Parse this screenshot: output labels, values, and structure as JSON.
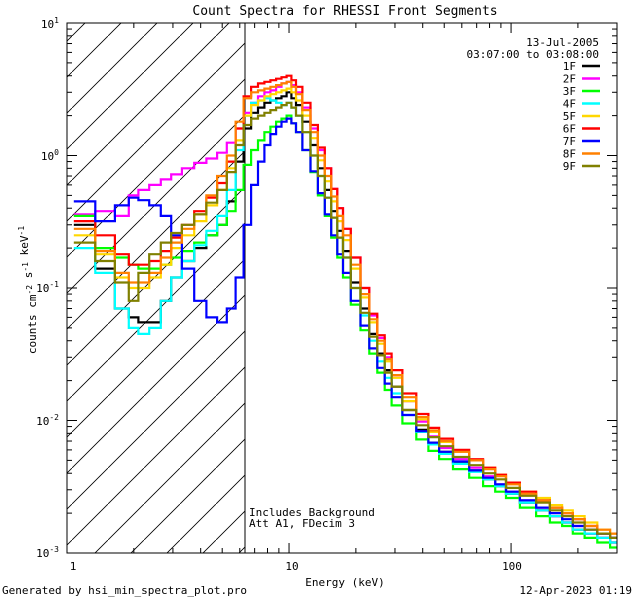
{
  "footer": {
    "generated_by": "Generated by hsi_min_spectra_plot.pro",
    "generated_on": "12-Apr-2023 01:19"
  },
  "chart_data": {
    "type": "line",
    "title": "Count Spectra for RHESSI Front Segments",
    "xlabel": "Energy (keV)",
    "ylabel": "counts cm^-2 s^-1 keV^-1",
    "xscale": "log",
    "yscale": "log",
    "xlim": [
      1,
      300
    ],
    "ylim": [
      0.001,
      10
    ],
    "x_tick_labels": [
      {
        "value": 1,
        "label": "1"
      },
      {
        "value": 10,
        "label": "10"
      },
      {
        "value": 100,
        "label": "100"
      }
    ],
    "y_tick_labels": [
      {
        "value": 0.001,
        "base": "10",
        "exp": "-3"
      },
      {
        "value": 0.01,
        "base": "10",
        "exp": "-2"
      },
      {
        "value": 0.1,
        "base": "10",
        "exp": "-1"
      },
      {
        "value": 1,
        "base": "10",
        "exp": "0"
      },
      {
        "value": 10,
        "base": "10",
        "exp": "1"
      }
    ],
    "date": "13-Jul-2005",
    "time_range": "03:07:00 to 03:08:00",
    "annotations": [
      "Includes Background",
      "Att A1, FDecim 3"
    ],
    "shaded_region": {
      "x0": 1,
      "x1": 6,
      "pattern": "diagonal-hatch"
    },
    "vertical_line": 6,
    "legend_position": "top-right",
    "x": [
      1.2,
      1.5,
      1.8,
      2.0,
      2.2,
      2.5,
      2.8,
      3.1,
      3.5,
      4.0,
      4.5,
      5.0,
      5.5,
      6.0,
      6.5,
      7.0,
      7.5,
      8.0,
      8.5,
      9.0,
      9.5,
      10.0,
      10.5,
      11.0,
      12.0,
      13.0,
      14.0,
      15.0,
      16.0,
      17.0,
      18.0,
      20.0,
      22.0,
      24.0,
      26.0,
      28.0,
      30.0,
      35.0,
      40.0,
      45.0,
      50.0,
      60.0,
      70.0,
      80.0,
      90.0,
      100.0,
      120.0,
      140.0,
      160.0,
      180.0,
      200.0,
      230.0,
      260.0,
      300.0
    ],
    "series": [
      {
        "name": "1F",
        "color": "#000000",
        "values": [
          0.3,
          0.14,
          0.07,
          0.06,
          0.055,
          0.055,
          0.08,
          0.12,
          0.16,
          0.2,
          0.25,
          0.3,
          0.45,
          0.9,
          1.6,
          2.1,
          2.3,
          2.5,
          2.6,
          2.7,
          2.8,
          3.0,
          2.7,
          2.4,
          1.8,
          1.2,
          0.8,
          0.55,
          0.38,
          0.27,
          0.19,
          0.11,
          0.07,
          0.045,
          0.032,
          0.024,
          0.018,
          0.012,
          0.0085,
          0.0068,
          0.0058,
          0.0048,
          0.0042,
          0.0036,
          0.0032,
          0.0028,
          0.0024,
          0.0021,
          0.0019,
          0.0017,
          0.0015,
          0.0014,
          0.0013,
          0.0012
        ]
      },
      {
        "name": "2F",
        "color": "#ff00ff",
        "values": [
          0.36,
          0.38,
          0.35,
          0.5,
          0.55,
          0.6,
          0.66,
          0.72,
          0.8,
          0.88,
          0.95,
          1.05,
          1.25,
          1.6,
          2.1,
          2.5,
          2.8,
          3.0,
          3.1,
          3.3,
          3.5,
          3.6,
          3.4,
          3.0,
          2.3,
          1.6,
          1.1,
          0.8,
          0.56,
          0.4,
          0.28,
          0.17,
          0.1,
          0.062,
          0.042,
          0.03,
          0.022,
          0.014,
          0.0098,
          0.0076,
          0.0062,
          0.0051,
          0.0044,
          0.0038,
          0.0033,
          0.0029,
          0.0025,
          0.0022,
          0.0019,
          0.0017,
          0.0016,
          0.0014,
          0.0013,
          0.0012
        ]
      },
      {
        "name": "3F",
        "color": "#00ff00",
        "values": [
          0.35,
          0.2,
          0.17,
          0.15,
          0.14,
          0.14,
          0.15,
          0.17,
          0.19,
          0.22,
          0.25,
          0.3,
          0.38,
          0.55,
          0.85,
          1.1,
          1.3,
          1.5,
          1.65,
          1.8,
          1.9,
          2.0,
          1.75,
          1.5,
          1.1,
          0.75,
          0.5,
          0.35,
          0.24,
          0.17,
          0.12,
          0.075,
          0.048,
          0.032,
          0.023,
          0.017,
          0.013,
          0.0095,
          0.0072,
          0.0059,
          0.0051,
          0.0043,
          0.0037,
          0.0032,
          0.0029,
          0.0026,
          0.0022,
          0.0019,
          0.0017,
          0.0016,
          0.0014,
          0.0013,
          0.0012,
          0.0011
        ]
      },
      {
        "name": "4F",
        "color": "#00ffff",
        "values": [
          0.2,
          0.13,
          0.07,
          0.05,
          0.045,
          0.05,
          0.08,
          0.12,
          0.16,
          0.21,
          0.27,
          0.35,
          0.55,
          1.1,
          2.0,
          2.5,
          2.6,
          2.7,
          2.6,
          2.5,
          2.4,
          2.5,
          2.3,
          2.0,
          1.5,
          1.0,
          0.7,
          0.48,
          0.34,
          0.24,
          0.17,
          0.1,
          0.062,
          0.04,
          0.028,
          0.021,
          0.016,
          0.011,
          0.0082,
          0.0066,
          0.0056,
          0.0047,
          0.0041,
          0.0036,
          0.0032,
          0.0028,
          0.0024,
          0.0021,
          0.0019,
          0.0017,
          0.0015,
          0.0014,
          0.0013,
          0.0012
        ]
      },
      {
        "name": "5F",
        "color": "#ffd700",
        "values": [
          0.25,
          0.18,
          0.12,
          0.1,
          0.1,
          0.12,
          0.15,
          0.2,
          0.25,
          0.32,
          0.42,
          0.55,
          0.8,
          1.3,
          2.0,
          2.4,
          2.6,
          2.8,
          2.9,
          3.0,
          3.1,
          3.2,
          3.0,
          2.6,
          2.0,
          1.35,
          0.92,
          0.64,
          0.45,
          0.32,
          0.23,
          0.14,
          0.085,
          0.055,
          0.038,
          0.028,
          0.021,
          0.014,
          0.0102,
          0.0082,
          0.0069,
          0.0058,
          0.005,
          0.0044,
          0.0039,
          0.0034,
          0.0029,
          0.0026,
          0.0023,
          0.0021,
          0.0019,
          0.0017,
          0.0015,
          0.0014
        ]
      },
      {
        "name": "6F",
        "color": "#ff0000",
        "values": [
          0.32,
          0.25,
          0.18,
          0.15,
          0.15,
          0.16,
          0.19,
          0.24,
          0.3,
          0.38,
          0.48,
          0.62,
          0.9,
          1.6,
          2.8,
          3.3,
          3.5,
          3.6,
          3.7,
          3.8,
          3.9,
          4.0,
          3.7,
          3.3,
          2.5,
          1.7,
          1.15,
          0.8,
          0.56,
          0.4,
          0.28,
          0.17,
          0.1,
          0.064,
          0.044,
          0.032,
          0.024,
          0.016,
          0.0112,
          0.0088,
          0.0073,
          0.006,
          0.0051,
          0.0044,
          0.0039,
          0.0034,
          0.0029,
          0.0025,
          0.0022,
          0.002,
          0.0018,
          0.0016,
          0.0014,
          0.0013
        ]
      },
      {
        "name": "7F",
        "color": "#0000ff",
        "values": [
          0.45,
          0.32,
          0.42,
          0.48,
          0.46,
          0.42,
          0.35,
          0.25,
          0.14,
          0.08,
          0.06,
          0.055,
          0.07,
          0.12,
          0.3,
          0.6,
          0.9,
          1.2,
          1.45,
          1.65,
          1.8,
          1.9,
          1.75,
          1.5,
          1.1,
          0.76,
          0.52,
          0.36,
          0.25,
          0.18,
          0.13,
          0.08,
          0.052,
          0.035,
          0.025,
          0.019,
          0.015,
          0.011,
          0.0083,
          0.0068,
          0.0058,
          0.0049,
          0.0042,
          0.0037,
          0.0033,
          0.0029,
          0.0025,
          0.0022,
          0.002,
          0.0018,
          0.0016,
          0.0015,
          0.0014,
          0.0013
        ]
      },
      {
        "name": "8F",
        "color": "#ff8000",
        "values": [
          0.28,
          0.19,
          0.13,
          0.11,
          0.11,
          0.13,
          0.17,
          0.22,
          0.28,
          0.36,
          0.5,
          0.7,
          1.0,
          1.8,
          2.7,
          3.0,
          3.1,
          3.2,
          3.3,
          3.4,
          3.5,
          3.6,
          3.3,
          2.9,
          2.2,
          1.5,
          1.0,
          0.7,
          0.49,
          0.35,
          0.25,
          0.15,
          0.09,
          0.058,
          0.04,
          0.029,
          0.022,
          0.015,
          0.0106,
          0.0084,
          0.007,
          0.0058,
          0.005,
          0.0043,
          0.0038,
          0.0033,
          0.0028,
          0.0025,
          0.0022,
          0.002,
          0.0018,
          0.0016,
          0.0015,
          0.0014
        ]
      },
      {
        "name": "9F",
        "color": "#808000",
        "values": [
          0.22,
          0.16,
          0.11,
          0.08,
          0.13,
          0.18,
          0.22,
          0.26,
          0.3,
          0.36,
          0.44,
          0.55,
          0.75,
          1.2,
          1.7,
          1.9,
          2.0,
          2.1,
          2.2,
          2.3,
          2.4,
          2.5,
          2.3,
          2.0,
          1.5,
          1.0,
          0.7,
          0.48,
          0.34,
          0.24,
          0.17,
          0.1,
          0.065,
          0.043,
          0.031,
          0.023,
          0.018,
          0.012,
          0.0092,
          0.0075,
          0.0064,
          0.0053,
          0.0046,
          0.004,
          0.0036,
          0.0031,
          0.0027,
          0.0024,
          0.0021,
          0.0019,
          0.0017,
          0.0015,
          0.0014,
          0.0013
        ]
      }
    ]
  }
}
